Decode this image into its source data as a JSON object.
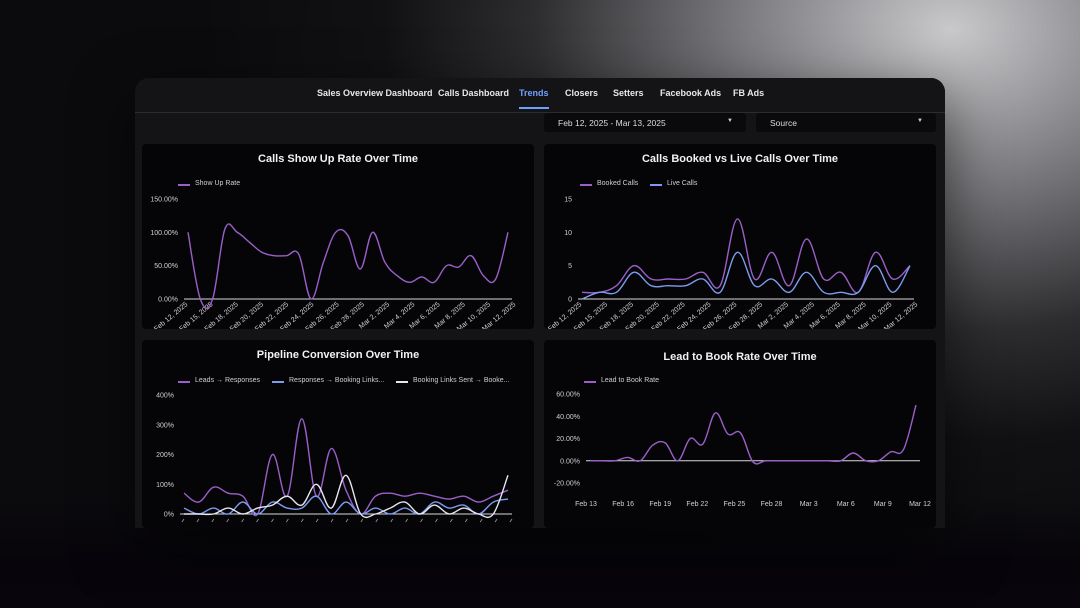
{
  "nav": {
    "tabs": [
      {
        "label": "Sales Overview Dashboard"
      },
      {
        "label": "Calls Dashboard"
      },
      {
        "label": "Trends"
      },
      {
        "label": "Closers"
      },
      {
        "label": "Setters"
      },
      {
        "label": "Facebook Ads"
      },
      {
        "label": "FB Ads"
      }
    ],
    "active_tab": "Trends"
  },
  "filters": {
    "date_range": "Feb 12, 2025 - Mar 13, 2025",
    "source": "Source"
  },
  "colors": {
    "accent": "#6ea1ff",
    "series_purple": "#9b5fc9",
    "series_blue": "#7d9cf0",
    "series_white": "#e6e6f0",
    "panel_bg": "#050507",
    "window_bg": "#141416"
  },
  "charts": [
    {
      "id": "show_up",
      "title": "Calls Show Up Rate Over Time",
      "chart_data": {
        "type": "line",
        "title": "Calls Show Up Rate Over Time",
        "x_ticks": [
          "Feb 12, 2025",
          "Feb 15, 2025",
          "Feb 18, 2025",
          "Feb 20, 2025",
          "Feb 22, 2025",
          "Feb 24, 2025",
          "Feb 26, 2025",
          "Feb 28, 2025",
          "Mar 2, 2025",
          "Mar 4, 2025",
          "Mar 6, 2025",
          "Mar 8, 2025",
          "Mar 10, 2025",
          "Mar 12, 2025"
        ],
        "y_ticks": [
          "0.00%",
          "50.00%",
          "100.00%",
          "150.00%"
        ],
        "ylim": [
          0,
          150
        ],
        "series": [
          {
            "name": "Show Up Rate",
            "color": "#9b5fc9",
            "values": [
              100,
              0,
              0,
              105,
              100,
              85,
              70,
              65,
              65,
              67,
              0,
              55,
              100,
              95,
              45,
              100,
              55,
              35,
              25,
              33,
              25,
              50,
              48,
              65,
              35,
              30,
              100
            ]
          }
        ]
      }
    },
    {
      "id": "booked_live",
      "title": "Calls Booked vs Live Calls Over Time",
      "chart_data": {
        "type": "line",
        "title": "Calls Booked vs Live Calls Over Time",
        "x_ticks": [
          "Feb 12, 2025",
          "Feb 15, 2025",
          "Feb 18, 2025",
          "Feb 20, 2025",
          "Feb 22, 2025",
          "Feb 24, 2025",
          "Feb 26, 2025",
          "Feb 28, 2025",
          "Mar 2, 2025",
          "Mar 4, 2025",
          "Mar 6, 2025",
          "Mar 8, 2025",
          "Mar 10, 2025",
          "Mar 12, 2025"
        ],
        "y_ticks": [
          "0",
          "5",
          "10",
          "15"
        ],
        "ylim": [
          0,
          15
        ],
        "series": [
          {
            "name": "Booked Calls",
            "color": "#9b5fc9",
            "values": [
              1,
              1,
              2,
              5,
              3,
              3,
              3,
              4,
              2,
              12,
              3,
              7,
              2,
              9,
              3,
              4,
              1,
              7,
              3,
              5
            ]
          },
          {
            "name": "Live Calls",
            "color": "#7d9cf0",
            "values": [
              0,
              1,
              1,
              4,
              2,
              2,
              2,
              3,
              1,
              7,
              2,
              3,
              1,
              4,
              1,
              1,
              1,
              5,
              1,
              5
            ]
          }
        ]
      }
    },
    {
      "id": "pipeline",
      "title": "Pipeline Conversion Over Time",
      "chart_data": {
        "type": "line",
        "title": "Pipeline Conversion Over Time",
        "y_ticks": [
          "0%",
          "100%",
          "200%",
          "300%",
          "400%"
        ],
        "ylim": [
          0,
          400
        ],
        "series": [
          {
            "name": "Leads → Responses",
            "color": "#9b5fc9",
            "values": [
              70,
              40,
              90,
              70,
              60,
              0,
              200,
              60,
              320,
              60,
              220,
              80,
              0,
              60,
              70,
              60,
              70,
              60,
              50,
              60,
              40,
              60,
              80
            ]
          },
          {
            "name": "Responses → Booking Links...",
            "color": "#7d9cf0",
            "values": [
              20,
              0,
              20,
              0,
              40,
              0,
              40,
              20,
              20,
              60,
              0,
              40,
              0,
              20,
              0,
              20,
              0,
              40,
              20,
              30,
              0,
              40,
              50
            ]
          },
          {
            "name": "Booking Links Sent → Booke...",
            "color": "#e6e6f0",
            "values": [
              0,
              0,
              0,
              20,
              0,
              20,
              30,
              60,
              30,
              100,
              20,
              130,
              0,
              0,
              20,
              40,
              0,
              30,
              0,
              20,
              0,
              0,
              130
            ]
          }
        ]
      }
    },
    {
      "id": "lead_to_book",
      "title": "Lead to Book Rate Over Time",
      "chart_data": {
        "type": "line",
        "title": "Lead to Book Rate Over Time",
        "x_ticks": [
          "Feb 13",
          "Feb 16",
          "Feb 19",
          "Feb 22",
          "Feb 25",
          "Feb 28",
          "Mar 3",
          "Mar 6",
          "Mar 9",
          "Mar 12"
        ],
        "y_ticks": [
          "-20.00%",
          "0.00%",
          "20.00%",
          "40.00%",
          "60.00%"
        ],
        "ylim": [
          -20,
          60
        ],
        "series": [
          {
            "name": "Lead to Book Rate",
            "color": "#9b5fc9",
            "values": [
              0,
              0,
              0,
              3,
              0,
              14,
              16,
              0,
              20,
              15,
              43,
              24,
              25,
              -1,
              0,
              0,
              0,
              0,
              0,
              0,
              0,
              7,
              0,
              0,
              8,
              10,
              50
            ]
          }
        ]
      }
    }
  ]
}
